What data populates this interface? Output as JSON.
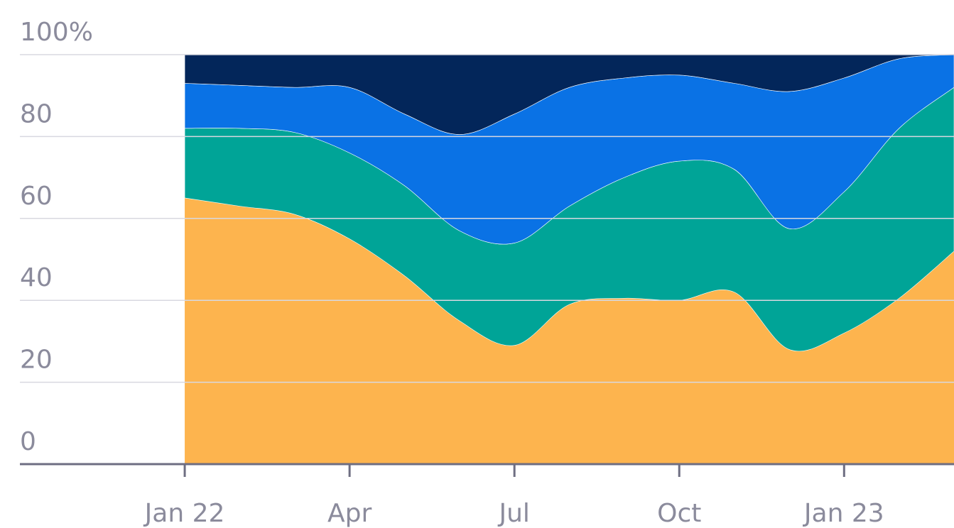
{
  "chart_data": {
    "type": "stacked-area",
    "x": [
      "2022-01",
      "2022-02",
      "2022-03",
      "2022-04",
      "2022-05",
      "2022-06",
      "2022-07",
      "2022-08",
      "2022-09",
      "2022-10",
      "2022-11",
      "2022-12",
      "2023-01",
      "2023-02",
      "2023-03"
    ],
    "series": [
      {
        "color": "#fdb44e",
        "values": [
          65,
          63,
          61,
          55,
          46,
          35,
          29,
          39,
          40.5,
          40,
          42,
          28,
          32,
          40.5,
          52
        ]
      },
      {
        "color": "#00a497",
        "values": [
          17,
          19,
          20,
          21,
          22,
          22,
          25,
          24,
          29.5,
          34,
          30,
          29.5,
          34.5,
          41.5,
          40
        ]
      },
      {
        "color": "#0a72e5",
        "values": [
          11,
          10.5,
          11,
          16,
          17.5,
          23.5,
          31.5,
          29,
          24.3,
          21,
          21,
          33.5,
          27.8,
          17,
          8
        ]
      },
      {
        "color": "#03265a",
        "values": [
          7,
          7.5,
          8,
          8,
          14.5,
          19.5,
          14.5,
          8,
          5.7,
          5,
          7,
          9,
          5.7,
          1,
          0
        ]
      }
    ],
    "xlim": [
      "2021-10",
      "2023-03"
    ],
    "xticks": [
      {
        "value": "2022-01",
        "label": "Jan 22"
      },
      {
        "value": "2022-04",
        "label": "Apr"
      },
      {
        "value": "2022-07",
        "label": "Jul"
      },
      {
        "value": "2022-10",
        "label": "Oct"
      },
      {
        "value": "2023-01",
        "label": "Jan 23"
      }
    ],
    "ylim": [
      0,
      100
    ],
    "yticks": [
      0,
      20,
      40,
      60,
      80,
      {
        "value": 100,
        "label": "100%"
      }
    ],
    "grid": true
  }
}
